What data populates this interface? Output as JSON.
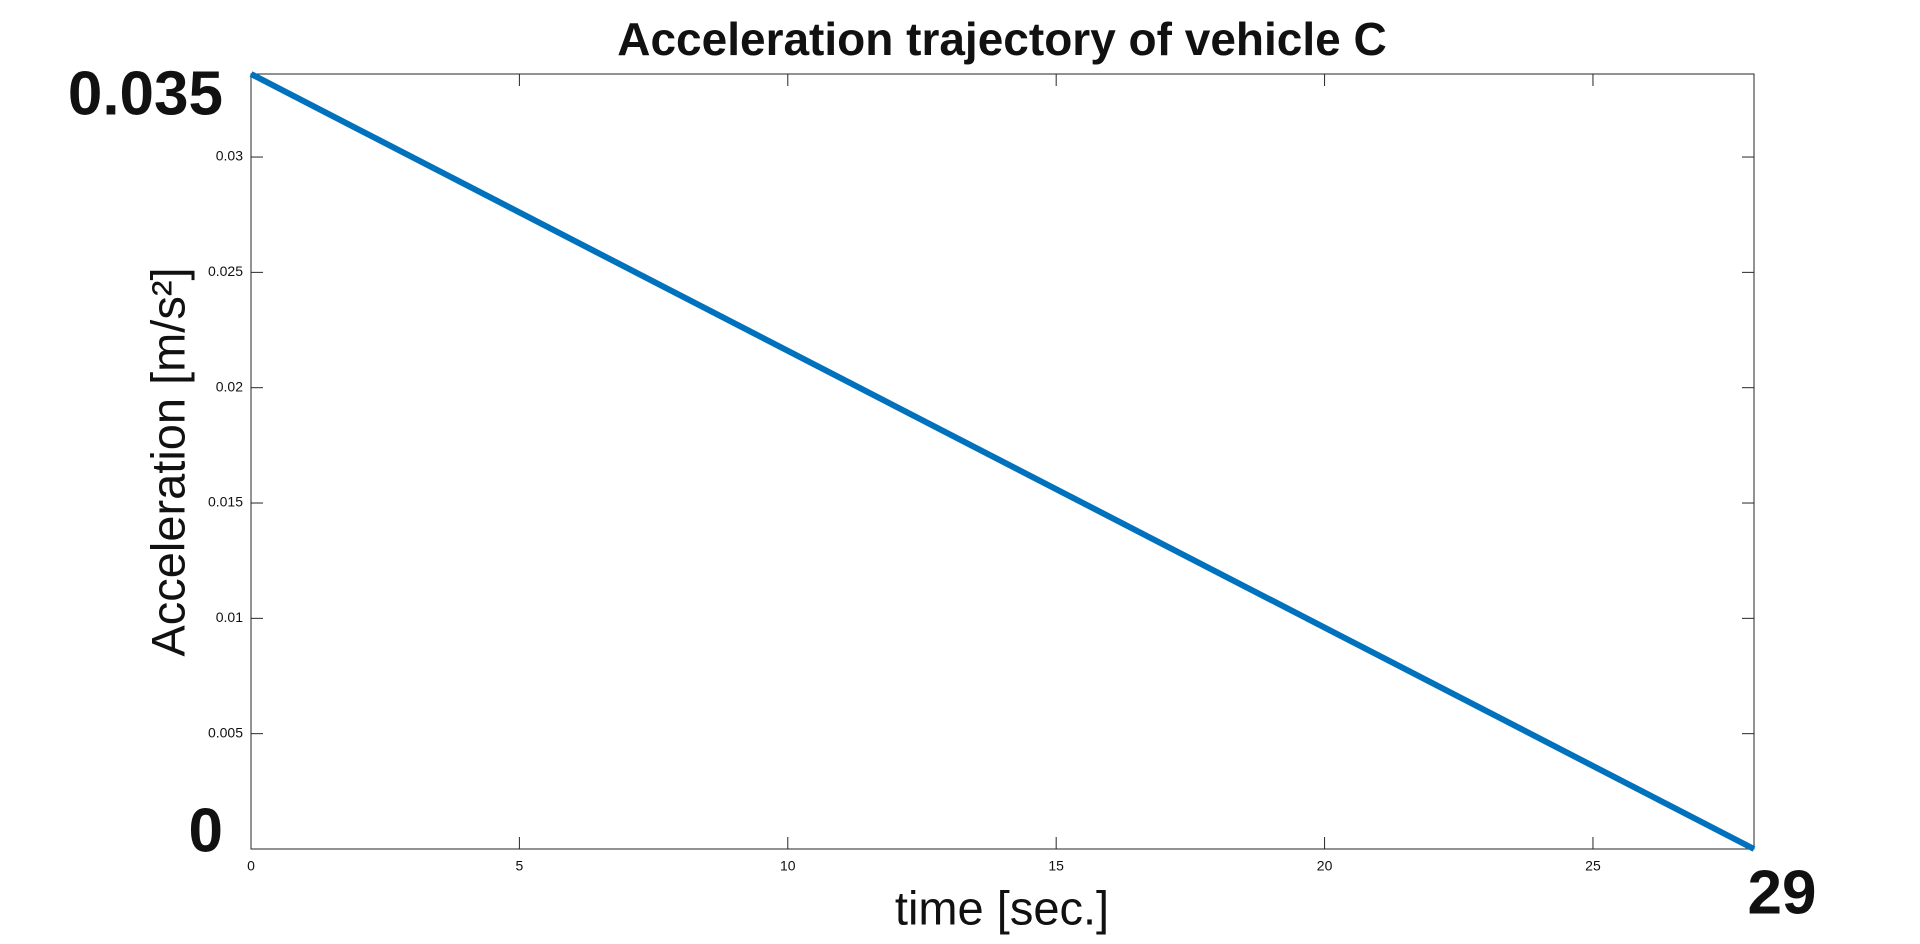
{
  "chart_data": {
    "type": "line",
    "title": "Acceleration trajectory of vehicle C",
    "xlabel": "time [sec.]",
    "ylabel": "Acceleration  [m/s²]",
    "x": [
      0,
      28
    ],
    "series": [
      {
        "name": "Acceleration",
        "color": "#0072bd",
        "values": [
          0.0336,
          0
        ]
      }
    ],
    "xlim": [
      0,
      28
    ],
    "xticks": [
      0,
      5,
      10,
      15,
      20,
      25
    ],
    "ylim": [
      0,
      0.0336
    ],
    "yticks": [
      0.005,
      0.01,
      0.015,
      0.02,
      0.025,
      0.03
    ],
    "grid": false,
    "annotations": [
      "0.035",
      "0",
      "29"
    ]
  }
}
